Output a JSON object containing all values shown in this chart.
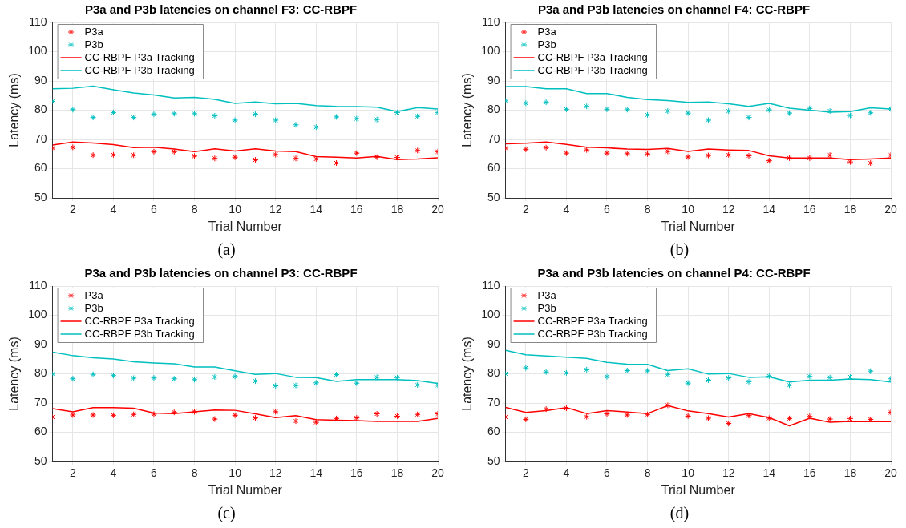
{
  "chart_data": [
    {
      "type": "line",
      "title": "P3a and P3b latencies on channel F3: CC-RBPF",
      "xlabel": "Trial Number",
      "ylabel": "Latency (ms)",
      "annotations": [
        "(a)"
      ],
      "x": [
        1,
        2,
        3,
        4,
        5,
        6,
        7,
        8,
        9,
        10,
        11,
        12,
        13,
        14,
        15,
        16,
        17,
        18,
        19,
        20
      ],
      "xlim": [
        1,
        20
      ],
      "xticks": [
        2,
        4,
        6,
        8,
        10,
        12,
        14,
        16,
        18,
        20
      ],
      "ylim": [
        50,
        110
      ],
      "yticks": [
        50,
        60,
        70,
        80,
        90,
        100,
        110
      ],
      "grid": true,
      "legend": "top left",
      "series": [
        {
          "name": "P3a",
          "type": "scatter",
          "marker": "cross",
          "color": "#ff0000",
          "values": [
            67,
            67.3,
            64.6,
            64.7,
            64.6,
            65.8,
            65.8,
            64.3,
            63.5,
            63.9,
            63,
            64.8,
            63.5,
            63.3,
            61.9,
            65.3,
            63.9,
            63.8,
            66.2,
            65.8
          ]
        },
        {
          "name": "P3b",
          "type": "scatter",
          "marker": "cross",
          "color": "#00bfbf",
          "values": [
            83,
            80.2,
            77.5,
            79.2,
            77.5,
            78.6,
            78.8,
            78.8,
            78.1,
            76.6,
            78.6,
            76.6,
            75,
            74.2,
            77.7,
            77.1,
            76.8,
            79.2,
            77.9,
            79.2
          ]
        },
        {
          "name": "CC-RBPF P3a Tracking",
          "type": "line",
          "marker": "none",
          "line_style": "solid",
          "color": "#ff0000",
          "values": [
            68.1,
            69.1,
            68.8,
            68.2,
            67.2,
            67.3,
            66.7,
            65.8,
            66.8,
            66,
            66.8,
            66,
            65.8,
            64.1,
            63.9,
            63.6,
            64.2,
            63.1,
            63.3,
            63.7
          ]
        },
        {
          "name": "CC-RBPF P3b Tracking",
          "type": "line",
          "marker": "none",
          "line_style": "solid",
          "color": "#00bfbf",
          "values": [
            87.3,
            87.5,
            88.2,
            87,
            85.9,
            85.2,
            84.2,
            84.4,
            83.7,
            82.3,
            82.8,
            82.2,
            82.3,
            81.6,
            81.3,
            81.2,
            81,
            79.5,
            80.9,
            80.4
          ]
        }
      ]
    },
    {
      "type": "line",
      "title": "P3a and P3b latencies on channel F4: CC-RBPF",
      "xlabel": "Trial Number",
      "ylabel": "Latency (ms)",
      "annotations": [
        "(b)"
      ],
      "x": [
        1,
        2,
        3,
        4,
        5,
        6,
        7,
        8,
        9,
        10,
        11,
        12,
        13,
        14,
        15,
        16,
        17,
        18,
        19,
        20
      ],
      "xlim": [
        1,
        20
      ],
      "xticks": [
        2,
        4,
        6,
        8,
        10,
        12,
        14,
        16,
        18,
        20
      ],
      "ylim": [
        50,
        110
      ],
      "yticks": [
        50,
        60,
        70,
        80,
        90,
        100,
        110
      ],
      "grid": true,
      "legend": "top left",
      "series": [
        {
          "name": "P3a",
          "type": "scatter",
          "marker": "cross",
          "color": "#ff0000",
          "values": [
            67,
            66.6,
            67.2,
            65.3,
            66.4,
            65.3,
            65.1,
            65,
            65.9,
            64,
            64.5,
            64.7,
            64.4,
            62.7,
            63.6,
            63.6,
            64.6,
            62.3,
            61.9,
            64.6
          ]
        },
        {
          "name": "P3b",
          "type": "scatter",
          "marker": "cross",
          "color": "#00bfbf",
          "values": [
            83.2,
            82.4,
            82.7,
            80.3,
            81.3,
            80.3,
            80.2,
            78.4,
            79.7,
            79,
            76.6,
            79.7,
            77.5,
            80.1,
            79,
            80.6,
            79.7,
            78.2,
            79.1,
            80.4
          ]
        },
        {
          "name": "CC-RBPF P3a Tracking",
          "type": "line",
          "marker": "none",
          "line_style": "solid",
          "color": "#ff0000",
          "values": [
            68.5,
            68.7,
            69.1,
            68.3,
            67.3,
            67.1,
            66.7,
            66.6,
            66.9,
            65.9,
            66.7,
            66.4,
            66.2,
            64.4,
            63.6,
            63.6,
            63.6,
            63.1,
            63.3,
            63.6
          ]
        },
        {
          "name": "CC-RBPF P3b Tracking",
          "type": "line",
          "marker": "none",
          "line_style": "solid",
          "color": "#00bfbf",
          "values": [
            88.1,
            88.1,
            87.3,
            87.3,
            85.7,
            85.7,
            84.4,
            83.6,
            83.3,
            82.7,
            82.8,
            82.2,
            81.3,
            82.3,
            80.7,
            80,
            79.3,
            79.5,
            80.8,
            80.4
          ]
        }
      ]
    },
    {
      "type": "line",
      "title": "P3a and P3b latencies on channel P3: CC-RBPF",
      "xlabel": "Trial Number",
      "ylabel": "Latency (ms)",
      "annotations": [
        "(c)"
      ],
      "x": [
        1,
        2,
        3,
        4,
        5,
        6,
        7,
        8,
        9,
        10,
        11,
        12,
        13,
        14,
        15,
        16,
        17,
        18,
        19,
        20
      ],
      "xlim": [
        1,
        20
      ],
      "xticks": [
        2,
        4,
        6,
        8,
        10,
        12,
        14,
        16,
        18,
        20
      ],
      "ylim": [
        50,
        110
      ],
      "yticks": [
        50,
        60,
        70,
        80,
        90,
        100,
        110
      ],
      "grid": true,
      "legend": "top left",
      "series": [
        {
          "name": "P3a",
          "type": "scatter",
          "marker": "cross",
          "color": "#ff0000",
          "values": [
            65.2,
            65.9,
            65.9,
            65.8,
            66.1,
            66.2,
            66.8,
            67,
            64.5,
            65.8,
            64.9,
            67,
            63.8,
            63.4,
            64.7,
            64.9,
            66.3,
            65.5,
            66.1,
            66.3
          ]
        },
        {
          "name": "P3b",
          "type": "scatter",
          "marker": "cross",
          "color": "#00bfbf",
          "values": [
            79.9,
            78.3,
            79.8,
            79.4,
            78.5,
            78.6,
            78.3,
            78,
            78.9,
            79.1,
            77.5,
            75.9,
            76,
            76.9,
            79.7,
            76.8,
            78.8,
            78.7,
            76.2,
            76.1
          ]
        },
        {
          "name": "CC-RBPF P3a Tracking",
          "type": "line",
          "marker": "none",
          "line_style": "solid",
          "color": "#ff0000",
          "values": [
            68.1,
            67,
            68.4,
            68.4,
            68.2,
            66.6,
            66.4,
            67,
            67.6,
            67.5,
            66.3,
            65,
            65.7,
            64.3,
            64.1,
            64,
            63.7,
            63.7,
            63.7,
            64.7
          ]
        },
        {
          "name": "CC-RBPF P3b Tracking",
          "type": "line",
          "marker": "none",
          "line_style": "solid",
          "color": "#00bfbf",
          "values": [
            87.4,
            86.2,
            85.5,
            85.1,
            84.1,
            83.7,
            83.4,
            82.3,
            82.3,
            81,
            79.8,
            80.1,
            78.8,
            78.7,
            77.4,
            78,
            78,
            78,
            77.7,
            76.7
          ]
        }
      ]
    },
    {
      "type": "line",
      "title": "P3a and P3b latencies on channel P4: CC-RBPF",
      "xlabel": "Trial Number",
      "ylabel": "Latency (ms)",
      "annotations": [
        "(d)"
      ],
      "x": [
        1,
        2,
        3,
        4,
        5,
        6,
        7,
        8,
        9,
        10,
        11,
        12,
        13,
        14,
        15,
        16,
        17,
        18,
        19,
        20
      ],
      "xlim": [
        1,
        20
      ],
      "xticks": [
        2,
        4,
        6,
        8,
        10,
        12,
        14,
        16,
        18,
        20
      ],
      "ylim": [
        50,
        110
      ],
      "yticks": [
        50,
        60,
        70,
        80,
        90,
        100,
        110
      ],
      "grid": true,
      "legend": "top left",
      "series": [
        {
          "name": "P3a",
          "type": "scatter",
          "marker": "cross",
          "color": "#ff0000",
          "values": [
            65.2,
            64.4,
            67.9,
            68.2,
            65.3,
            66.3,
            65.9,
            66.1,
            69.2,
            65.5,
            64.8,
            63,
            65.7,
            64.8,
            64.7,
            65.4,
            64.5,
            64.7,
            64.4,
            66.8
          ]
        },
        {
          "name": "P3b",
          "type": "scatter",
          "marker": "cross",
          "color": "#00bfbf",
          "values": [
            80,
            82,
            80.6,
            80.3,
            81.4,
            79,
            81.1,
            81,
            79.8,
            76.8,
            77.8,
            78.6,
            77.3,
            79.2,
            76.1,
            79.1,
            78.7,
            78.9,
            80.9,
            78.3
          ]
        },
        {
          "name": "CC-RBPF P3a Tracking",
          "type": "line",
          "marker": "none",
          "line_style": "solid",
          "color": "#ff0000",
          "values": [
            68.5,
            66.8,
            67.4,
            68.4,
            66.4,
            67.4,
            66.9,
            66.4,
            69.1,
            67.3,
            66.4,
            65.2,
            66.4,
            65,
            62.2,
            64.8,
            63.4,
            63.7,
            63.6,
            63.6
          ]
        },
        {
          "name": "CC-RBPF P3b Tracking",
          "type": "line",
          "marker": "none",
          "line_style": "solid",
          "color": "#00bfbf",
          "values": [
            88,
            86.5,
            86.1,
            85.7,
            85.3,
            83.9,
            83.3,
            83.2,
            81.1,
            81.7,
            79.9,
            80.1,
            78.8,
            79,
            77.2,
            77.8,
            77.8,
            78.2,
            78,
            77.2
          ]
        }
      ]
    }
  ]
}
